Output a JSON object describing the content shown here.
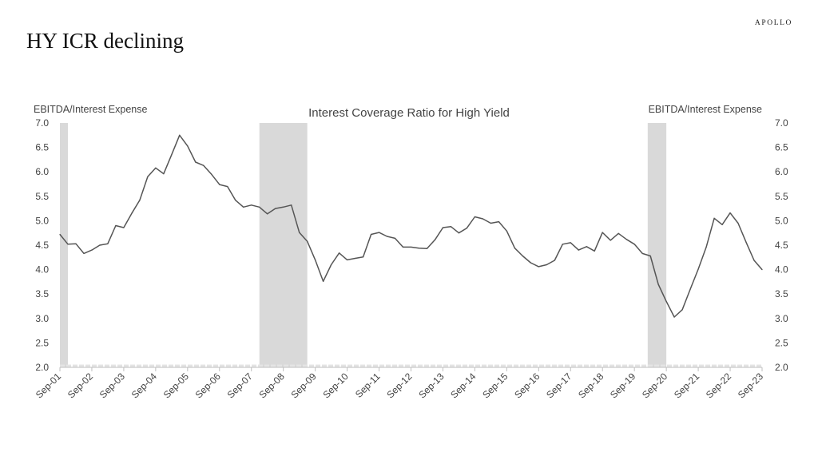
{
  "slide": {
    "title": "HY ICR declining",
    "brand": "APOLLO"
  },
  "chart_data": {
    "type": "line",
    "title": "Interest Coverage Ratio for High Yield",
    "ylabel_left": "EBITDA/Interest Expense",
    "ylabel_right": "EBITDA/Interest Expense",
    "ylim": [
      2.0,
      7.0
    ],
    "yticks": [
      "2.0",
      "2.5",
      "3.0",
      "3.5",
      "4.0",
      "4.5",
      "5.0",
      "5.5",
      "6.0",
      "6.5",
      "7.0"
    ],
    "xticks": [
      "Sep-01",
      "Sep-02",
      "Sep-03",
      "Sep-04",
      "Sep-05",
      "Sep-06",
      "Sep-07",
      "Sep-08",
      "Sep-09",
      "Sep-10",
      "Sep-11",
      "Sep-12",
      "Sep-13",
      "Sep-14",
      "Sep-15",
      "Sep-16",
      "Sep-17",
      "Sep-18",
      "Sep-19",
      "Sep-20",
      "Sep-21",
      "Sep-22",
      "Sep-23"
    ],
    "recessions": [
      {
        "start": "Sep-01",
        "end": "Dec-01"
      },
      {
        "start": "Dec-07",
        "end": "Jun-09"
      },
      {
        "start": "Feb-20",
        "end": "Sep-20"
      }
    ],
    "series": [
      {
        "values": [
          [
            "Sep-01",
            4.72
          ],
          [
            "Dec-01",
            4.52
          ],
          [
            "Mar-02",
            4.53
          ],
          [
            "Jun-02",
            4.33
          ],
          [
            "Sep-02",
            4.4
          ],
          [
            "Dec-02",
            4.5
          ],
          [
            "Mar-03",
            4.53
          ],
          [
            "Jun-03",
            4.9
          ],
          [
            "Sep-03",
            4.86
          ],
          [
            "Dec-03",
            5.15
          ],
          [
            "Mar-04",
            5.42
          ],
          [
            "Jun-04",
            5.9
          ],
          [
            "Sep-04",
            6.08
          ],
          [
            "Dec-04",
            5.96
          ],
          [
            "Mar-05",
            6.35
          ],
          [
            "Jun-05",
            6.75
          ],
          [
            "Sep-05",
            6.53
          ],
          [
            "Dec-05",
            6.2
          ],
          [
            "Mar-06",
            6.13
          ],
          [
            "Jun-06",
            5.95
          ],
          [
            "Sep-06",
            5.74
          ],
          [
            "Dec-06",
            5.7
          ],
          [
            "Mar-07",
            5.42
          ],
          [
            "Jun-07",
            5.28
          ],
          [
            "Sep-07",
            5.32
          ],
          [
            "Dec-07",
            5.28
          ],
          [
            "Mar-08",
            5.14
          ],
          [
            "Jun-08",
            5.25
          ],
          [
            "Sep-08",
            5.28
          ],
          [
            "Dec-08",
            5.32
          ],
          [
            "Mar-09",
            4.76
          ],
          [
            "Jun-09",
            4.58
          ],
          [
            "Sep-09",
            4.2
          ],
          [
            "Dec-09",
            3.76
          ],
          [
            "Mar-10",
            4.1
          ],
          [
            "Jun-10",
            4.34
          ],
          [
            "Sep-10",
            4.2
          ],
          [
            "Dec-10",
            4.23
          ],
          [
            "Mar-11",
            4.26
          ],
          [
            "Jun-11",
            4.72
          ],
          [
            "Sep-11",
            4.76
          ],
          [
            "Dec-11",
            4.68
          ],
          [
            "Mar-12",
            4.64
          ],
          [
            "Jun-12",
            4.46
          ],
          [
            "Sep-12",
            4.46
          ],
          [
            "Dec-12",
            4.44
          ],
          [
            "Mar-13",
            4.43
          ],
          [
            "Jun-13",
            4.61
          ],
          [
            "Sep-13",
            4.86
          ],
          [
            "Dec-13",
            4.88
          ],
          [
            "Mar-14",
            4.75
          ],
          [
            "Jun-14",
            4.85
          ],
          [
            "Sep-14",
            5.08
          ],
          [
            "Dec-14",
            5.04
          ],
          [
            "Mar-15",
            4.95
          ],
          [
            "Jun-15",
            4.98
          ],
          [
            "Sep-15",
            4.79
          ],
          [
            "Dec-15",
            4.44
          ],
          [
            "Mar-16",
            4.28
          ],
          [
            "Jun-16",
            4.14
          ],
          [
            "Sep-16",
            4.06
          ],
          [
            "Dec-16",
            4.1
          ],
          [
            "Mar-17",
            4.19
          ],
          [
            "Jun-17",
            4.52
          ],
          [
            "Sep-17",
            4.55
          ],
          [
            "Dec-17",
            4.4
          ],
          [
            "Mar-18",
            4.47
          ],
          [
            "Jun-18",
            4.38
          ],
          [
            "Sep-18",
            4.76
          ],
          [
            "Dec-18",
            4.6
          ],
          [
            "Mar-19",
            4.74
          ],
          [
            "Jun-19",
            4.62
          ],
          [
            "Sep-19",
            4.52
          ],
          [
            "Dec-19",
            4.33
          ],
          [
            "Mar-20",
            4.28
          ],
          [
            "Jun-20",
            3.7
          ],
          [
            "Sep-20",
            3.35
          ],
          [
            "Dec-20",
            3.03
          ],
          [
            "Mar-21",
            3.18
          ],
          [
            "Jun-21",
            3.6
          ],
          [
            "Sep-21",
            4.01
          ],
          [
            "Dec-21",
            4.46
          ],
          [
            "Mar-22",
            5.05
          ],
          [
            "Jun-22",
            4.92
          ],
          [
            "Sep-22",
            5.16
          ],
          [
            "Dec-22",
            4.95
          ],
          [
            "Mar-23",
            4.56
          ],
          [
            "Jun-23",
            4.19
          ],
          [
            "Sep-23",
            4.0
          ]
        ]
      }
    ],
    "colors": {
      "line": "#555555",
      "recession": "#d9d9d9",
      "axis": "#bfbfbf"
    }
  }
}
